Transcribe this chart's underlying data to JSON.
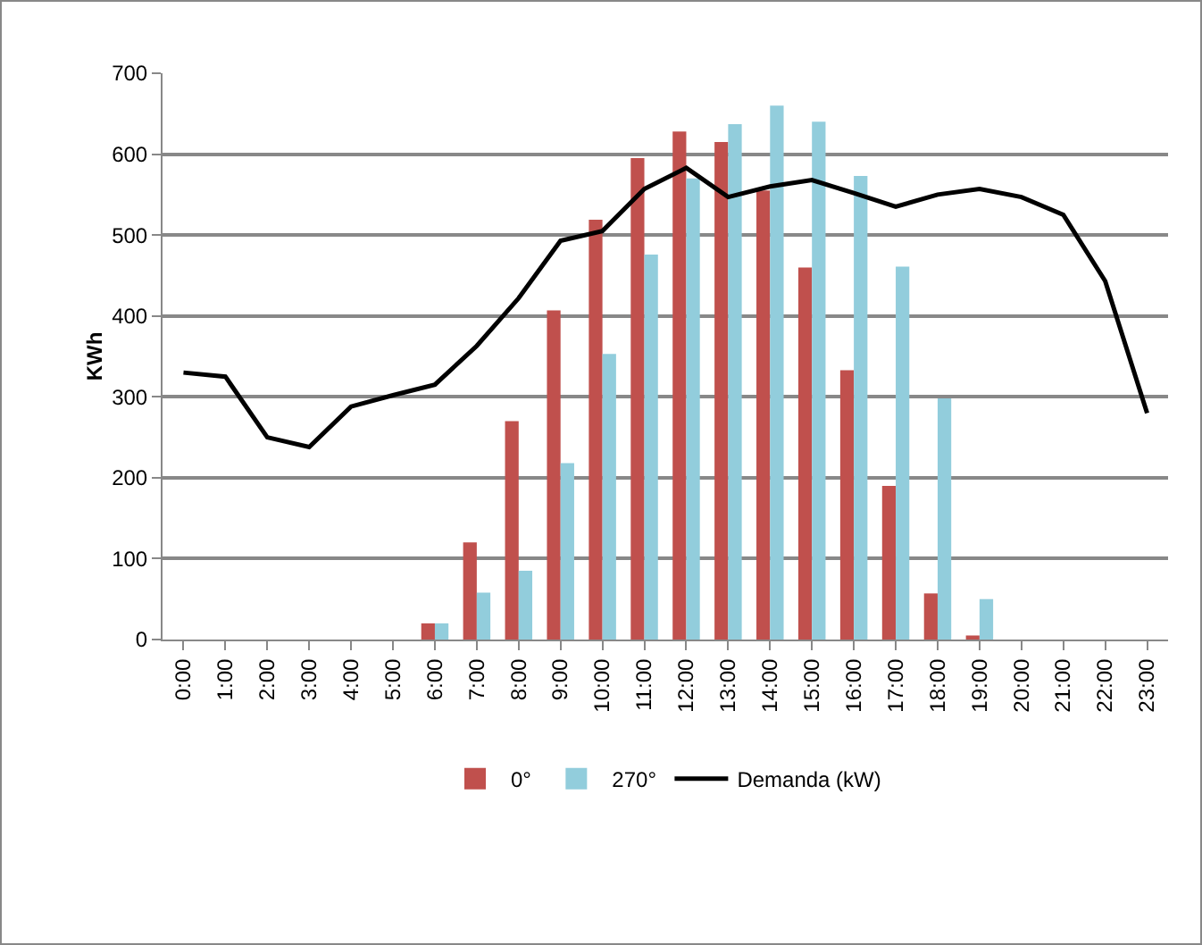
{
  "chart_data": {
    "type": "bar",
    "ylabel": "KWh",
    "categories": [
      "0:00",
      "1:00",
      "2:00",
      "3:00",
      "4:00",
      "5:00",
      "6:00",
      "7:00",
      "8:00",
      "9:00",
      "10:00",
      "11:00",
      "12:00",
      "13:00",
      "14:00",
      "15:00",
      "16:00",
      "17:00",
      "18:00",
      "19:00",
      "20:00",
      "21:00",
      "22:00",
      "23:00"
    ],
    "series": [
      {
        "name": "0°",
        "color": "#c0504d",
        "values": [
          0,
          0,
          0,
          0,
          0,
          0,
          20,
          120,
          270,
          407,
          519,
          595,
          628,
          615,
          555,
          460,
          333,
          190,
          57,
          5,
          0,
          0,
          0,
          0
        ]
      },
      {
        "name": "270°",
        "color": "#92cddc",
        "values": [
          0,
          0,
          0,
          0,
          0,
          0,
          20,
          58,
          85,
          218,
          353,
          476,
          570,
          637,
          660,
          640,
          573,
          461,
          298,
          50,
          0,
          0,
          0,
          0
        ]
      },
      {
        "name": "Demanda (kW)",
        "type": "line",
        "color": "#000000",
        "values": [
          330,
          325,
          250,
          238,
          288,
          302,
          315,
          363,
          422,
          493,
          505,
          557,
          583,
          547,
          560,
          568,
          552,
          535,
          550,
          557,
          547,
          525,
          443,
          280
        ]
      }
    ],
    "ylim": [
      0,
      700
    ],
    "yticks": [
      0,
      100,
      200,
      300,
      400,
      500,
      600,
      700
    ],
    "grid": "y",
    "legend": "bottom",
    "marker": "none"
  }
}
